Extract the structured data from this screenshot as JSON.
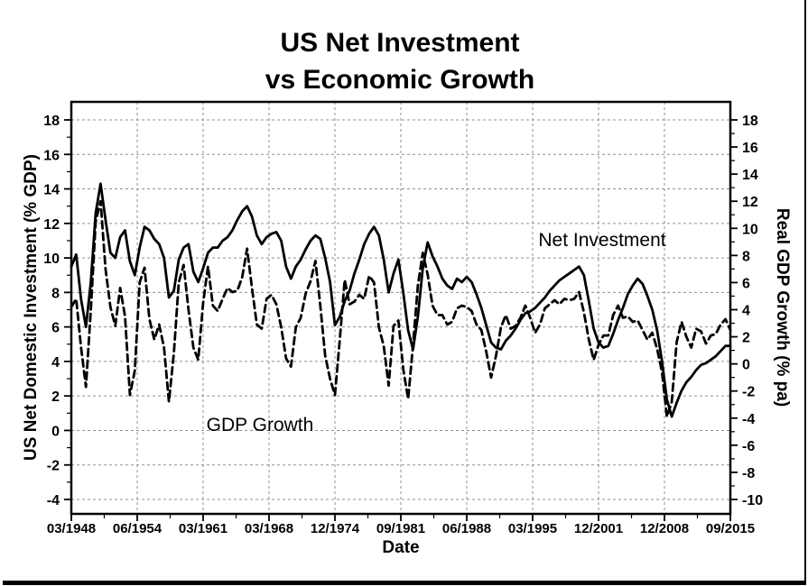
{
  "chart_data": {
    "type": "line",
    "title_line1": "US Net Investment",
    "title_line2": "vs Economic Growth",
    "xlabel": "Date",
    "ylabel_left": "US Net Domestic Investment (% GDP)",
    "ylabel_right": "Real GDP Growth (% pa)",
    "x_tick_labels": [
      "03/1948",
      "06/1954",
      "03/1961",
      "03/1968",
      "12/1974",
      "09/1981",
      "06/1988",
      "03/1995",
      "12/2001",
      "12/2008",
      "09/2015"
    ],
    "y_left_ticks": [
      18,
      16,
      14,
      12,
      10,
      8,
      6,
      4,
      2,
      0,
      -2,
      -4
    ],
    "y_right_ticks": [
      18,
      16,
      14,
      12,
      10,
      8,
      6,
      4,
      2,
      0,
      -2,
      -4,
      -6,
      -8,
      -10
    ],
    "y_left_gridline_range": [
      -4,
      18
    ],
    "y_right_gridline_range": [
      -10,
      18
    ],
    "grid": true,
    "legend_position": "in-plot-annotations",
    "x_start_year": 1948.0,
    "x_step_years": 0.5,
    "annotations": [
      {
        "text": "Net Investment",
        "series": "solid"
      },
      {
        "text": "GDP Growth",
        "series": "dashed"
      }
    ],
    "series": [
      {
        "name": "Net Investment",
        "axis": "left",
        "style": "solid",
        "values": [
          9.5,
          10.2,
          7.6,
          6.0,
          8.6,
          12.6,
          14.3,
          12.2,
          10.3,
          10.0,
          11.2,
          11.6,
          9.8,
          9.0,
          10.6,
          11.8,
          11.6,
          11.1,
          10.8,
          10.0,
          7.7,
          8.1,
          9.9,
          10.6,
          10.8,
          9.2,
          8.6,
          9.4,
          10.3,
          10.6,
          10.6,
          11.0,
          11.2,
          11.6,
          12.2,
          12.7,
          13.0,
          12.4,
          11.3,
          10.8,
          11.2,
          11.4,
          11.5,
          11.0,
          9.5,
          8.8,
          9.5,
          9.9,
          10.5,
          11.0,
          11.3,
          11.1,
          10.0,
          8.6,
          6.1,
          6.6,
          7.5,
          8.1,
          9.1,
          9.9,
          10.8,
          11.4,
          11.8,
          11.3,
          9.9,
          8.0,
          9.1,
          9.9,
          8.0,
          5.8,
          4.7,
          6.6,
          9.4,
          10.9,
          10.1,
          9.5,
          8.8,
          8.4,
          8.2,
          8.8,
          8.6,
          8.9,
          8.6,
          7.9,
          7.1,
          6.1,
          5.1,
          4.8,
          4.7,
          5.2,
          5.5,
          5.9,
          6.4,
          6.8,
          6.9,
          7.1,
          7.4,
          7.7,
          8.1,
          8.4,
          8.7,
          8.9,
          9.1,
          9.3,
          9.5,
          9.0,
          7.5,
          5.9,
          5.1,
          4.8,
          4.9,
          5.6,
          6.4,
          7.1,
          7.9,
          8.4,
          8.8,
          8.5,
          7.8,
          7.0,
          5.8,
          4.0,
          1.8,
          0.8,
          1.6,
          2.3,
          2.8,
          3.1,
          3.5,
          3.8,
          3.9,
          4.1,
          4.3,
          4.6,
          4.9,
          4.9
        ]
      },
      {
        "name": "GDP Growth",
        "axis": "right",
        "style": "dashed",
        "values": [
          4.2,
          4.8,
          1.2,
          -1.7,
          4.0,
          10.5,
          12.0,
          7.0,
          4.2,
          2.8,
          5.6,
          3.5,
          -2.3,
          -0.5,
          6.0,
          7.1,
          3.3,
          1.8,
          2.9,
          1.2,
          -2.8,
          0.8,
          6.0,
          7.3,
          4.0,
          1.2,
          0.3,
          4.5,
          7.2,
          4.3,
          3.9,
          4.8,
          5.6,
          5.3,
          5.4,
          6.4,
          8.5,
          5.6,
          2.9,
          2.6,
          4.8,
          5.1,
          4.4,
          2.7,
          0.4,
          -0.2,
          2.7,
          3.4,
          5.2,
          6.1,
          7.6,
          4.3,
          0.6,
          -1.1,
          -2.3,
          1.8,
          6.2,
          4.4,
          4.6,
          5.1,
          4.8,
          6.5,
          6.0,
          2.7,
          1.3,
          -1.6,
          2.8,
          3.2,
          -0.4,
          -2.6,
          1.4,
          5.8,
          8.2,
          6.6,
          4.3,
          3.6,
          3.6,
          2.9,
          3.1,
          4.1,
          4.3,
          4.2,
          3.9,
          2.9,
          2.5,
          0.9,
          -1.0,
          0.6,
          2.7,
          3.6,
          2.6,
          2.8,
          3.4,
          4.3,
          3.4,
          2.3,
          2.9,
          4.1,
          4.4,
          4.7,
          4.4,
          4.8,
          4.7,
          4.8,
          5.3,
          3.8,
          1.8,
          0.3,
          1.4,
          2.1,
          2.1,
          3.6,
          4.3,
          3.4,
          3.5,
          3.1,
          3.2,
          2.5,
          1.8,
          2.3,
          1.1,
          -0.6,
          -3.9,
          -2.8,
          1.6,
          3.1,
          2.0,
          1.2,
          2.6,
          2.4,
          1.5,
          2.1,
          2.2,
          2.9,
          3.3,
          2.5
        ]
      }
    ],
    "colors": {
      "line": "#000000",
      "grid": "#909090",
      "background": "#ffffff",
      "text": "#000000"
    }
  }
}
